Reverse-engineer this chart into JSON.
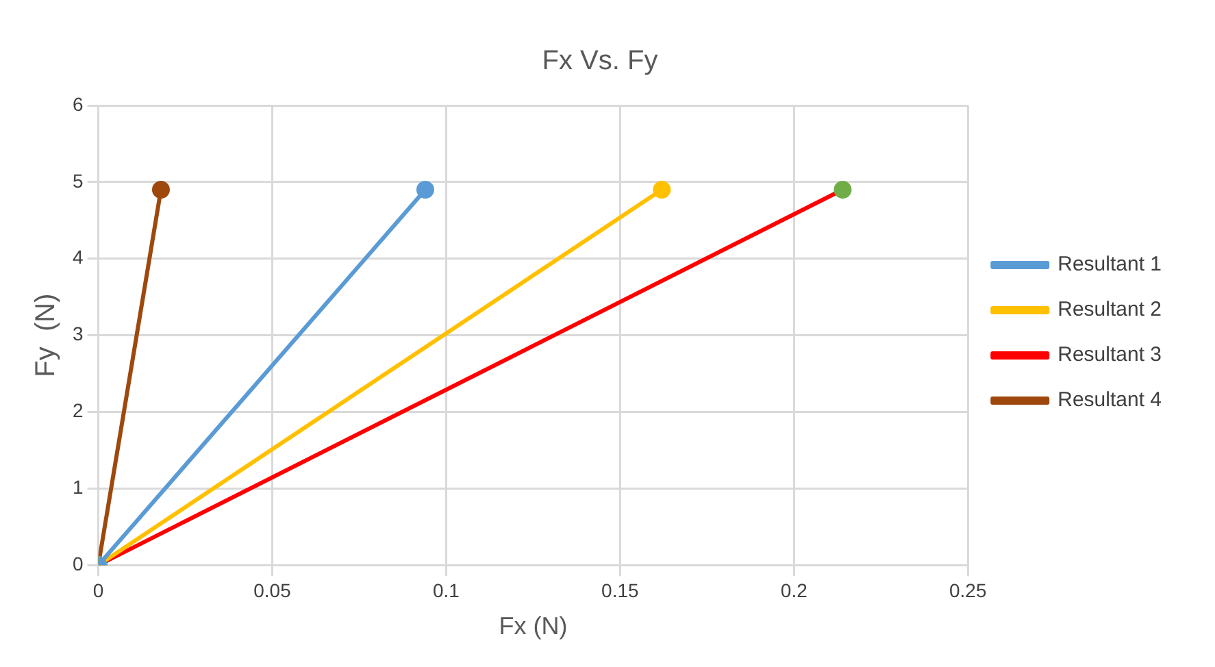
{
  "chart_data": {
    "type": "line",
    "title": "Fx Vs. Fy",
    "xlabel": "Fx (N)",
    "ylabel": "Fy  (N)",
    "xlim": [
      0,
      0.25
    ],
    "xticks": [
      0,
      0.05,
      0.1,
      0.15,
      0.2,
      0.25
    ],
    "ylim": [
      0,
      6
    ],
    "yticks": [
      0,
      1,
      2,
      3,
      4,
      5,
      6
    ],
    "grid": true,
    "legend": "right",
    "marker": "circle",
    "series": [
      {
        "name": "Resultant 1",
        "color": "#5b9bd5",
        "x": [
          0,
          0.094
        ],
        "values": [
          0,
          4.9
        ]
      },
      {
        "name": "Resultant 2",
        "color": "#ffc000",
        "x": [
          0,
          0.162
        ],
        "values": [
          0,
          4.9
        ]
      },
      {
        "name": "Resultant 3",
        "color": "#ff0000",
        "colors": [
          "#70ad47",
          "#70ad47"
        ],
        "x": [
          0,
          0.214
        ],
        "values": [
          0,
          4.9
        ]
      },
      {
        "name": "Resultant 4",
        "color": "#9e480e",
        "x": [
          0,
          0.018
        ],
        "values": [
          0,
          4.9
        ]
      }
    ]
  }
}
